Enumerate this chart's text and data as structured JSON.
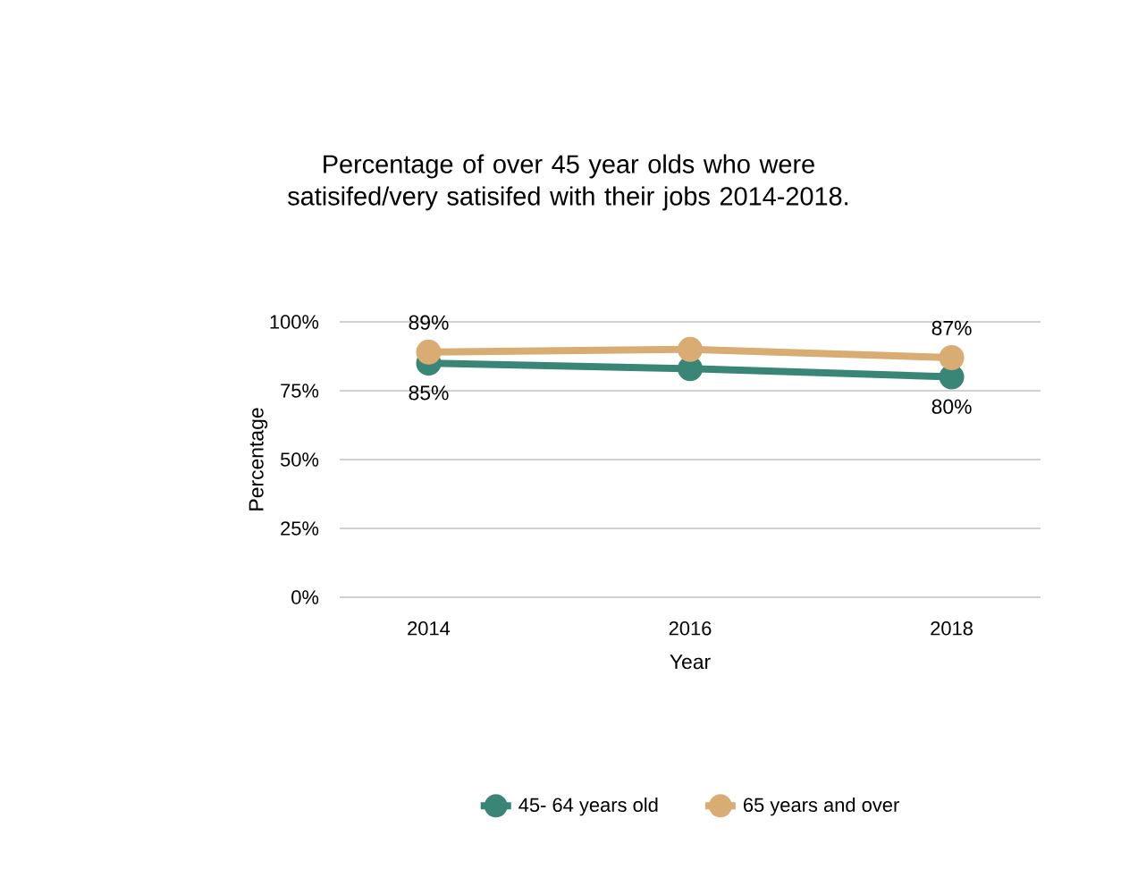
{
  "chart_data": {
    "type": "line",
    "title": "Percentage of over 45 year olds who were satisifed/very satisifed with their jobs 2014-2018.",
    "xlabel": "Year",
    "ylabel": "Percentage",
    "categories": [
      "2014",
      "2016",
      "2018"
    ],
    "series": [
      {
        "name": "45- 64 years old",
        "color": "#3a8676",
        "values": [
          85,
          83,
          80
        ],
        "value_labels": [
          "85%",
          null,
          "80%"
        ]
      },
      {
        "name": "65 years and over",
        "color": "#d8ac72",
        "values": [
          89,
          90,
          87
        ],
        "value_labels": [
          "89%",
          null,
          "87%"
        ]
      }
    ],
    "ylim": [
      0,
      100
    ],
    "yticks": [
      {
        "value": 0,
        "label": "0%"
      },
      {
        "value": 25,
        "label": "25%"
      },
      {
        "value": 50,
        "label": "50%"
      },
      {
        "value": 75,
        "label": "75%"
      },
      {
        "value": 100,
        "label": "100%"
      }
    ],
    "grid": "y",
    "legend": "bottom",
    "marker": "circle",
    "line_style": "solid"
  }
}
